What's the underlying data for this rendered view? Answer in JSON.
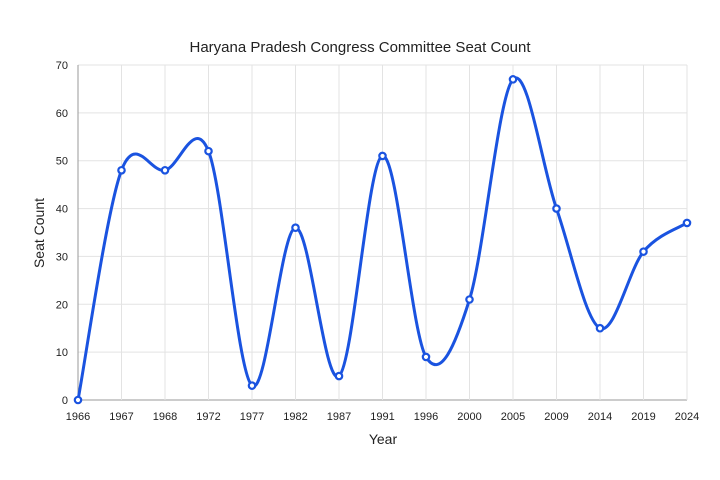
{
  "chart_data": {
    "type": "line",
    "title": "Haryana Pradesh Congress Committee Seat Count",
    "xlabel": "Year",
    "ylabel": "Seat Count",
    "categories": [
      "1966",
      "1967",
      "1968",
      "1972",
      "1977",
      "1982",
      "1987",
      "1991",
      "1996",
      "2000",
      "2005",
      "2009",
      "2014",
      "2019",
      "2024"
    ],
    "series": [
      {
        "values": [
          0,
          48,
          48,
          52,
          3,
          36,
          5,
          51,
          9,
          21,
          67,
          40,
          15,
          31,
          37
        ]
      }
    ],
    "ylim": [
      0,
      70
    ],
    "yticks": [
      0,
      10,
      20,
      30,
      40,
      50,
      60,
      70
    ],
    "grid": true,
    "smooth": true,
    "colors": {
      "series": "#1a53e0",
      "grid": "#e3e3e3"
    }
  }
}
